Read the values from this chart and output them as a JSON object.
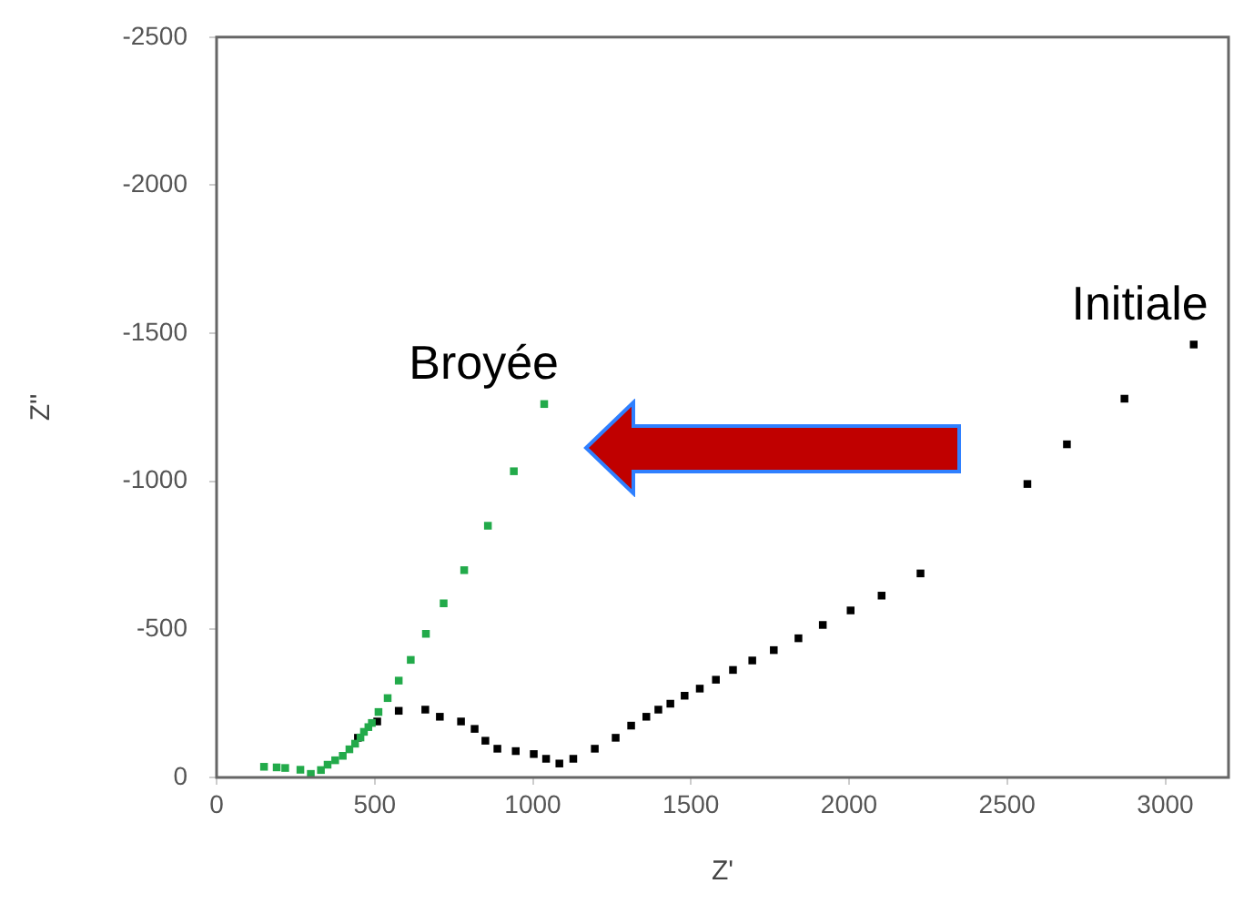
{
  "chart_data": {
    "type": "scatter",
    "xlabel": "Z'",
    "ylabel": "Z''",
    "xlim": [
      0,
      3200
    ],
    "xticks": [
      0,
      500,
      1000,
      1500,
      2000,
      2500,
      3000
    ],
    "ylim": [
      0,
      -2500
    ],
    "yticks": [
      0,
      -500,
      -1000,
      -1500,
      -2000,
      -2500
    ],
    "grid": false,
    "legend": false,
    "marker": "square",
    "series": [
      {
        "name": "Broyée",
        "color": "#22aa4a",
        "x": [
          150,
          190,
          217,
          265,
          298,
          330,
          351,
          375,
          399,
          420,
          438,
          455,
          466,
          480,
          491,
          512,
          541,
          576,
          614,
          662,
          718,
          783,
          858,
          940,
          1036
        ],
        "values": [
          -36,
          -34,
          -32,
          -26,
          -12,
          -25,
          -43,
          -58,
          -73,
          -95,
          -114,
          -135,
          -154,
          -170,
          -184,
          -221,
          -268,
          -327,
          -397,
          -485,
          -588,
          -700,
          -850,
          -1034,
          -1261
        ]
      },
      {
        "name": "Initiale",
        "color": "#000000",
        "x": [
          447,
          508,
          576,
          660,
          706,
          773,
          816,
          850,
          888,
          946,
          1003,
          1042,
          1084,
          1128,
          1196,
          1262,
          1311,
          1359,
          1397,
          1435,
          1480,
          1528,
          1579,
          1633,
          1694,
          1762,
          1840,
          1917,
          2005,
          2103,
          2226,
          2564,
          2689,
          2871,
          3090
        ],
        "values": [
          -134,
          -189,
          -225,
          -229,
          -205,
          -189,
          -164,
          -124,
          -97,
          -89,
          -79,
          -63,
          -47,
          -63,
          -97,
          -134,
          -175,
          -205,
          -229,
          -249,
          -276,
          -300,
          -330,
          -363,
          -395,
          -430,
          -470,
          -515,
          -564,
          -614,
          -689,
          -991,
          -1125,
          -1279,
          -1462
        ]
      }
    ]
  }
}
